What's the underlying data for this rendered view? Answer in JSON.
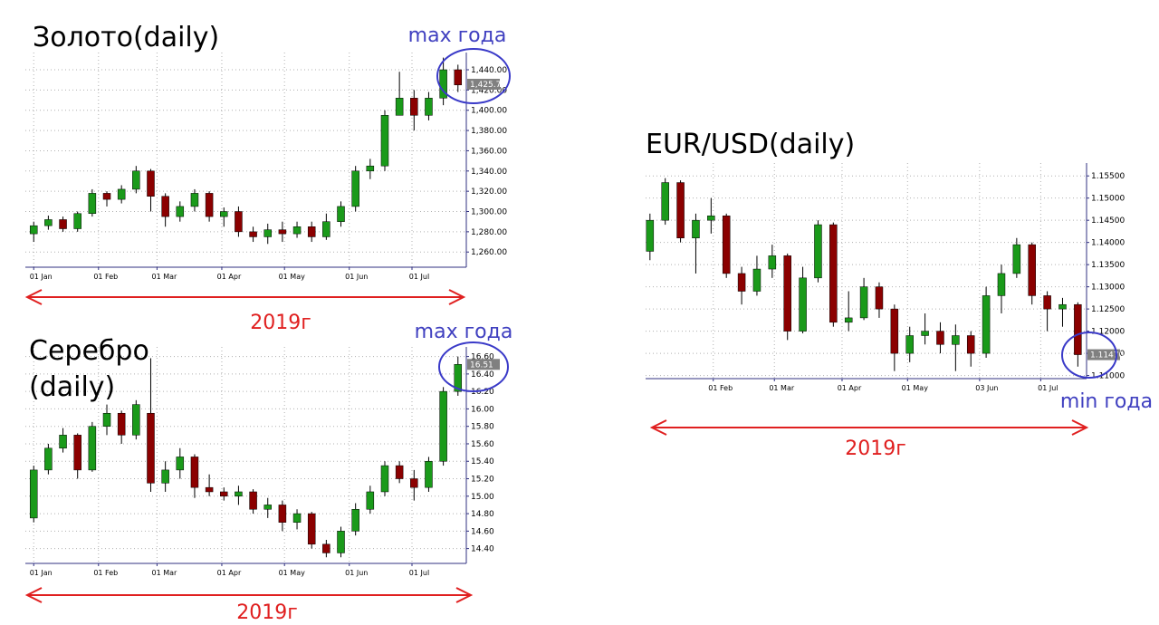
{
  "chart_data": [
    {
      "type": "candlestick",
      "title": "Золото(daily)",
      "extreme_label": "max года",
      "period_label": "2019г",
      "up_color": "#1a9a1a",
      "down_color": "#8b0000",
      "grid": true,
      "x": [
        1,
        8,
        15,
        22,
        29,
        36,
        43,
        50,
        57,
        64,
        71,
        78,
        85,
        92,
        99,
        106,
        113,
        120,
        127,
        134,
        141,
        148,
        155,
        162,
        169,
        176,
        183,
        190,
        197,
        204
      ],
      "open": [
        1278,
        1286,
        1292,
        1283,
        1298,
        1318,
        1312,
        1322,
        1340,
        1315,
        1295,
        1305,
        1318,
        1295,
        1300,
        1280,
        1275,
        1282,
        1278,
        1285,
        1275,
        1290,
        1305,
        1340,
        1345,
        1395,
        1412,
        1395,
        1412,
        1440
      ],
      "high": [
        1290,
        1296,
        1295,
        1300,
        1322,
        1320,
        1326,
        1345,
        1342,
        1318,
        1310,
        1322,
        1320,
        1304,
        1305,
        1285,
        1288,
        1290,
        1290,
        1290,
        1298,
        1310,
        1345,
        1352,
        1400,
        1438,
        1420,
        1418,
        1452,
        1445
      ],
      "low": [
        1270,
        1282,
        1280,
        1280,
        1295,
        1305,
        1308,
        1318,
        1300,
        1285,
        1290,
        1300,
        1290,
        1285,
        1275,
        1270,
        1268,
        1270,
        1274,
        1270,
        1272,
        1285,
        1300,
        1332,
        1340,
        1395,
        1380,
        1390,
        1405,
        1418
      ],
      "close": [
        1286,
        1292,
        1283,
        1298,
        1318,
        1312,
        1322,
        1340,
        1315,
        1295,
        1305,
        1318,
        1295,
        1300,
        1280,
        1275,
        1282,
        1278,
        1285,
        1275,
        1290,
        1305,
        1340,
        1345,
        1395,
        1412,
        1395,
        1412,
        1440,
        1425
      ],
      "last": {
        "value": 1425.7,
        "label": "1,425.7"
      },
      "xlim": [
        -3,
        208
      ],
      "xticks": [
        {
          "value": 1,
          "label": "01 Jan"
        },
        {
          "value": 32,
          "label": "01 Feb"
        },
        {
          "value": 60,
          "label": "01 Mar"
        },
        {
          "value": 91,
          "label": "01 Apr"
        },
        {
          "value": 121,
          "label": "01 May"
        },
        {
          "value": 152,
          "label": "01 Jun"
        },
        {
          "value": 182,
          "label": "01 Jul"
        }
      ],
      "ylim": [
        1245,
        1457
      ],
      "yticks": [
        {
          "value": 1260,
          "label": "1,260.00"
        },
        {
          "value": 1280,
          "label": "1,280.00"
        },
        {
          "value": 1300,
          "label": "1,300.00"
        },
        {
          "value": 1320,
          "label": "1,320.00"
        },
        {
          "value": 1340,
          "label": "1,340.00"
        },
        {
          "value": 1360,
          "label": "1,360.00"
        },
        {
          "value": 1380,
          "label": "1,380.00"
        },
        {
          "value": 1400,
          "label": "1,400.00"
        },
        {
          "value": 1420,
          "label": "1,420.00"
        },
        {
          "value": 1440,
          "label": "1,440.00"
        }
      ]
    },
    {
      "type": "candlestick",
      "title": "Серебро (daily)",
      "extreme_label": "max года",
      "period_label": "2019г",
      "up_color": "#1a9a1a",
      "down_color": "#8b0000",
      "grid": true,
      "x": [
        1,
        8,
        15,
        22,
        29,
        36,
        43,
        50,
        57,
        64,
        71,
        78,
        85,
        92,
        99,
        106,
        113,
        120,
        127,
        134,
        141,
        148,
        155,
        162,
        169,
        176,
        183,
        190,
        197,
        204
      ],
      "open": [
        14.75,
        15.3,
        15.55,
        15.7,
        15.3,
        15.8,
        15.95,
        15.7,
        15.95,
        15.15,
        15.3,
        15.45,
        15.1,
        15.05,
        15.0,
        15.05,
        14.85,
        14.9,
        14.7,
        14.8,
        14.45,
        14.35,
        14.6,
        14.85,
        15.05,
        15.35,
        15.2,
        15.1,
        15.4,
        16.2
      ],
      "high": [
        15.35,
        15.6,
        15.78,
        15.72,
        15.85,
        16.05,
        15.98,
        16.1,
        16.58,
        15.4,
        15.55,
        15.48,
        15.25,
        15.1,
        15.12,
        15.08,
        14.98,
        14.95,
        14.85,
        14.82,
        14.5,
        14.65,
        14.92,
        15.12,
        15.4,
        15.4,
        15.3,
        15.45,
        16.25,
        16.6
      ],
      "low": [
        14.7,
        15.25,
        15.5,
        15.2,
        15.28,
        15.7,
        15.6,
        15.65,
        15.05,
        15.05,
        15.2,
        14.98,
        15.0,
        14.95,
        14.9,
        14.8,
        14.75,
        14.6,
        14.62,
        14.4,
        14.3,
        14.3,
        14.55,
        14.8,
        15.0,
        15.15,
        14.95,
        15.05,
        15.35,
        16.15
      ],
      "close": [
        15.3,
        15.55,
        15.7,
        15.3,
        15.8,
        15.95,
        15.7,
        16.05,
        15.15,
        15.3,
        15.45,
        15.1,
        15.05,
        15.0,
        15.05,
        14.85,
        14.9,
        14.7,
        14.8,
        14.45,
        14.35,
        14.6,
        14.85,
        15.05,
        15.35,
        15.2,
        15.1,
        15.4,
        16.2,
        16.51
      ],
      "last": {
        "value": 16.51,
        "label": "16.51"
      },
      "xlim": [
        -3,
        208
      ],
      "xticks": [
        {
          "value": 1,
          "label": "01 Jan"
        },
        {
          "value": 32,
          "label": "01 Feb"
        },
        {
          "value": 60,
          "label": "01 Mar"
        },
        {
          "value": 91,
          "label": "01 Apr"
        },
        {
          "value": 121,
          "label": "01 May"
        },
        {
          "value": 152,
          "label": "01 Jun"
        },
        {
          "value": 182,
          "label": "01 Jul"
        }
      ],
      "ylim": [
        14.23,
        16.71
      ],
      "yticks": [
        {
          "value": 14.4,
          "label": "14.40"
        },
        {
          "value": 14.6,
          "label": "14.60"
        },
        {
          "value": 14.8,
          "label": "14.80"
        },
        {
          "value": 15,
          "label": "15.00"
        },
        {
          "value": 15.2,
          "label": "15.20"
        },
        {
          "value": 15.4,
          "label": "15.40"
        },
        {
          "value": 15.6,
          "label": "15.60"
        },
        {
          "value": 15.8,
          "label": "15.80"
        },
        {
          "value": 16,
          "label": "16.00"
        },
        {
          "value": 16.2,
          "label": "16.20"
        },
        {
          "value": 16.4,
          "label": "16.40"
        },
        {
          "value": 16.6,
          "label": "16.60"
        }
      ]
    },
    {
      "type": "candlestick",
      "title": "EUR/USD(daily)",
      "extreme_label": "min года",
      "period_label": "2019г",
      "up_color": "#1a9a1a",
      "down_color": "#8b0000",
      "grid": true,
      "x": [
        3,
        10,
        17,
        24,
        31,
        38,
        45,
        52,
        59,
        66,
        73,
        80,
        87,
        94,
        101,
        108,
        115,
        122,
        129,
        136,
        143,
        150,
        157,
        164,
        171,
        178,
        185,
        192,
        199
      ],
      "open": [
        1.138,
        1.145,
        1.1535,
        1.141,
        1.145,
        1.146,
        1.133,
        1.129,
        1.134,
        1.137,
        1.12,
        1.132,
        1.144,
        1.122,
        1.123,
        1.13,
        1.125,
        1.115,
        1.119,
        1.12,
        1.117,
        1.119,
        1.115,
        1.128,
        1.133,
        1.1395,
        1.128,
        1.125,
        1.126
      ],
      "high": [
        1.1465,
        1.1545,
        1.154,
        1.1465,
        1.15,
        1.1465,
        1.1345,
        1.137,
        1.1395,
        1.1375,
        1.1345,
        1.145,
        1.1445,
        1.129,
        1.132,
        1.131,
        1.126,
        1.121,
        1.124,
        1.122,
        1.1215,
        1.12,
        1.13,
        1.135,
        1.141,
        1.14,
        1.129,
        1.1275,
        1.1265
      ],
      "low": [
        1.136,
        1.144,
        1.14,
        1.133,
        1.142,
        1.132,
        1.126,
        1.128,
        1.132,
        1.118,
        1.1195,
        1.131,
        1.121,
        1.12,
        1.1225,
        1.123,
        1.111,
        1.113,
        1.117,
        1.115,
        1.111,
        1.112,
        1.114,
        1.124,
        1.132,
        1.126,
        1.12,
        1.121,
        1.112
      ],
      "close": [
        1.145,
        1.1535,
        1.141,
        1.145,
        1.146,
        1.133,
        1.129,
        1.134,
        1.137,
        1.12,
        1.132,
        1.144,
        1.122,
        1.123,
        1.13,
        1.125,
        1.115,
        1.119,
        1.12,
        1.117,
        1.119,
        1.115,
        1.128,
        1.133,
        1.1395,
        1.128,
        1.125,
        1.126,
        1.1147
      ],
      "last": {
        "value": 1.1147,
        "label": "1.11470"
      },
      "xlim": [
        1,
        203
      ],
      "xticks": [
        {
          "value": 32,
          "label": "01 Feb"
        },
        {
          "value": 60,
          "label": "01 Mar"
        },
        {
          "value": 91,
          "label": "01 Apr"
        },
        {
          "value": 121,
          "label": "01 May"
        },
        {
          "value": 154,
          "label": "03 Jun"
        },
        {
          "value": 182,
          "label": "01 Jul"
        }
      ],
      "ylim": [
        1.1093,
        1.1579
      ],
      "yticks": [
        {
          "value": 1.11,
          "label": "1.11000"
        },
        {
          "value": 1.115,
          "label": "1.11500"
        },
        {
          "value": 1.12,
          "label": "1.12000"
        },
        {
          "value": 1.125,
          "label": "1.12500"
        },
        {
          "value": 1.13,
          "label": "1.13000"
        },
        {
          "value": 1.135,
          "label": "1.13500"
        },
        {
          "value": 1.14,
          "label": "1.14000"
        },
        {
          "value": 1.145,
          "label": "1.14500"
        },
        {
          "value": 1.15,
          "label": "1.15000"
        },
        {
          "value": 1.155,
          "label": "1.15500"
        }
      ]
    }
  ]
}
